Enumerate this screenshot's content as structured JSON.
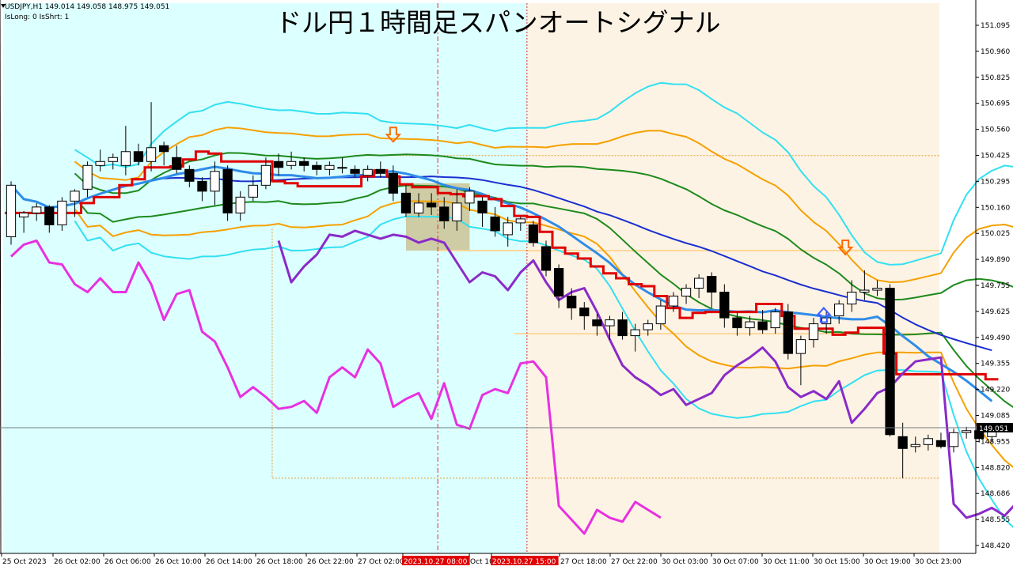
{
  "header": {
    "symbol_line": "USDJPY,H1  149.014 149.058 148.975 149.051",
    "indicator_line": "IsLong: 0 IsShrt: 1",
    "title": "ドル円１時間足スパンオートシグナル"
  },
  "chart_data": {
    "type": "candlestick",
    "symbol": "USDJPY",
    "timeframe": "H1",
    "ohlc_current": {
      "open": 149.014,
      "high": 149.058,
      "low": 148.975,
      "close": 149.051
    },
    "current_price_label": "149.051",
    "y_ticks": [
      "151.095",
      "150.960",
      "150.825",
      "150.695",
      "150.560",
      "150.425",
      "150.295",
      "150.160",
      "150.025",
      "149.890",
      "149.755",
      "149.625",
      "149.490",
      "149.355",
      "149.220",
      "149.085",
      "148.955",
      "148.820",
      "148.686",
      "148.555",
      "148.420"
    ],
    "ylim": [
      148.42,
      151.2
    ],
    "x_ticks": [
      "25 Oct 2023",
      "26 Oct 02:00",
      "26 Oct 06:00",
      "26 Oct 10:00",
      "26 Oct 14:00",
      "26 Oct 18:00",
      "26 Oct 22:00",
      "27 Oct 02:00",
      "2023.10.27 08:00",
      "Oct 10",
      "2023.10.27 15:00",
      "27 Oct 18:00",
      "27 Oct 22:00",
      "30 Oct 03:00",
      "30 Oct 07:00",
      "30 Oct 11:00",
      "30 Oct 15:00",
      "30 Oct 19:00",
      "30 Oct 23:00"
    ],
    "highlighted_x_ticks": [
      "2023.10.27 08:00",
      "2023.10.27 15:00"
    ],
    "background_zones": [
      {
        "from_bar": 0,
        "to_bar": 41,
        "color": "#dcffff"
      },
      {
        "from_bar": 41,
        "to_bar": 74,
        "color": "#fdf3e4"
      }
    ],
    "signals": [
      {
        "bar": 30,
        "type": "sell",
        "price": 150.52,
        "color": "#ff6a00"
      },
      {
        "bar": 65.5,
        "type": "sell",
        "price": 149.95,
        "color": "#ff6a00"
      },
      {
        "bar": 63.8,
        "type": "buy",
        "price": 149.64,
        "color": "#3a5cff"
      }
    ],
    "candles": [
      [
        150.02,
        150.3,
        149.98,
        150.28
      ],
      [
        150.12,
        150.15,
        150.04,
        150.14
      ],
      [
        150.14,
        150.19,
        150.1,
        150.17
      ],
      [
        150.17,
        150.18,
        150.04,
        150.08
      ],
      [
        150.08,
        150.22,
        150.05,
        150.2
      ],
      [
        150.2,
        150.26,
        150.12,
        150.25
      ],
      [
        150.26,
        150.4,
        150.22,
        150.38
      ],
      [
        150.38,
        150.46,
        150.35,
        150.4
      ],
      [
        150.4,
        150.44,
        150.36,
        150.42
      ],
      [
        150.38,
        150.58,
        150.33,
        150.45
      ],
      [
        150.45,
        150.49,
        150.38,
        150.4
      ],
      [
        150.4,
        150.7,
        150.35,
        150.47
      ],
      [
        150.48,
        150.5,
        150.38,
        150.45
      ],
      [
        150.42,
        150.48,
        150.34,
        150.36
      ],
      [
        150.36,
        150.38,
        150.27,
        150.3
      ],
      [
        150.3,
        150.32,
        150.2,
        150.25
      ],
      [
        150.25,
        150.4,
        150.18,
        150.35
      ],
      [
        150.36,
        150.38,
        150.1,
        150.14
      ],
      [
        150.14,
        150.25,
        150.1,
        150.22
      ],
      [
        150.22,
        150.33,
        150.2,
        150.28
      ],
      [
        150.28,
        150.42,
        150.26,
        150.38
      ],
      [
        150.4,
        150.44,
        150.33,
        150.37
      ],
      [
        150.38,
        150.45,
        150.36,
        150.4
      ],
      [
        150.4,
        150.42,
        150.35,
        150.38
      ],
      [
        150.38,
        150.4,
        150.33,
        150.36
      ],
      [
        150.36,
        150.4,
        150.33,
        150.38
      ],
      [
        150.37,
        150.42,
        150.34,
        150.37
      ],
      [
        150.36,
        150.38,
        150.32,
        150.34
      ],
      [
        150.33,
        150.38,
        150.3,
        150.36
      ],
      [
        150.36,
        150.4,
        150.32,
        150.34
      ],
      [
        150.34,
        150.38,
        150.2,
        150.24
      ],
      [
        150.24,
        150.28,
        150.12,
        150.14
      ],
      [
        150.14,
        150.24,
        150.12,
        150.19
      ],
      [
        150.19,
        150.24,
        150.13,
        150.17
      ],
      [
        150.17,
        150.22,
        150.06,
        150.1
      ],
      [
        150.1,
        150.26,
        150.05,
        150.19
      ],
      [
        150.19,
        150.27,
        150.15,
        150.25
      ],
      [
        150.2,
        150.22,
        150.07,
        150.14
      ],
      [
        150.12,
        150.17,
        150.02,
        150.05
      ],
      [
        150.03,
        150.12,
        149.97,
        150.09
      ],
      [
        150.09,
        150.12,
        150.05,
        150.11
      ],
      [
        150.08,
        150.1,
        149.97,
        149.99
      ],
      [
        149.97,
        150.0,
        149.82,
        149.85
      ],
      [
        149.86,
        149.88,
        149.66,
        149.72
      ],
      [
        149.72,
        149.76,
        149.6,
        149.66
      ],
      [
        149.66,
        149.69,
        149.55,
        149.62
      ],
      [
        149.6,
        149.63,
        149.52,
        149.57
      ],
      [
        149.57,
        149.62,
        149.5,
        149.6
      ],
      [
        149.6,
        149.64,
        149.5,
        149.52
      ],
      [
        149.52,
        149.58,
        149.44,
        149.55
      ],
      [
        149.55,
        149.6,
        149.52,
        149.58
      ],
      [
        149.58,
        149.7,
        149.55,
        149.67
      ],
      [
        149.67,
        149.74,
        149.64,
        149.72
      ],
      [
        149.72,
        149.78,
        149.68,
        149.76
      ],
      [
        149.76,
        149.83,
        149.71,
        149.81
      ],
      [
        149.82,
        149.84,
        149.66,
        149.74
      ],
      [
        149.74,
        149.78,
        149.56,
        149.61
      ],
      [
        149.61,
        149.64,
        149.52,
        149.56
      ],
      [
        149.56,
        149.62,
        149.52,
        149.59
      ],
      [
        149.59,
        149.65,
        149.53,
        149.55
      ],
      [
        149.56,
        149.66,
        149.53,
        149.64
      ],
      [
        149.64,
        149.68,
        149.4,
        149.43
      ],
      [
        149.43,
        149.52,
        149.27,
        149.5
      ],
      [
        149.5,
        149.61,
        149.46,
        149.58
      ],
      [
        149.58,
        149.64,
        149.53,
        149.61
      ],
      [
        149.62,
        149.7,
        149.58,
        149.68
      ],
      [
        149.68,
        149.8,
        149.64,
        149.74
      ],
      [
        149.74,
        149.85,
        149.7,
        149.75
      ],
      [
        149.75,
        149.8,
        149.72,
        149.76
      ],
      [
        149.76,
        149.78,
        149.01,
        149.02
      ],
      [
        149.01,
        149.08,
        148.8,
        148.95
      ],
      [
        148.96,
        149.01,
        148.93,
        148.97
      ],
      [
        148.97,
        149.02,
        148.94,
        149.0
      ],
      [
        148.99,
        149.03,
        148.95,
        148.96
      ],
      [
        148.96,
        149.05,
        148.93,
        149.03
      ],
      [
        149.03,
        149.06,
        149.0,
        149.04
      ],
      [
        149.04,
        149.06,
        148.98,
        149.0
      ],
      [
        149.01,
        149.06,
        148.98,
        149.05
      ]
    ],
    "overlay_boxes": [
      {
        "from_bar": 31.5,
        "to_bar": 35.5,
        "top": 150.29,
        "bottom": 149.95,
        "color": "#c8bb86"
      }
    ],
    "guide_lines": {
      "horizontal": [
        {
          "price": 150.43,
          "from_bar": 28,
          "to_bar": 74,
          "color": "#e89b30",
          "style": "dotted"
        },
        {
          "price": 149.95,
          "from_bar": 34,
          "to_bar": 74,
          "color": "#ffd79a",
          "style": "solid"
        },
        {
          "price": 149.53,
          "from_bar": 40,
          "to_bar": 74,
          "color": "#ffd79a",
          "style": "solid"
        },
        {
          "price": 148.8,
          "from_bar": 21,
          "to_bar": 74,
          "color": "#e89b30",
          "style": "dotted"
        }
      ],
      "vertical": [
        {
          "bar": 21,
          "from": 150.06,
          "to": 148.8,
          "color": "#e89b30",
          "style": "dotted"
        },
        {
          "bar": 33.5,
          "color": "#e03030",
          "style": "dashdot"
        },
        {
          "bar": 40.5,
          "color": "#e03030",
          "style": "dotted"
        }
      ]
    }
  }
}
